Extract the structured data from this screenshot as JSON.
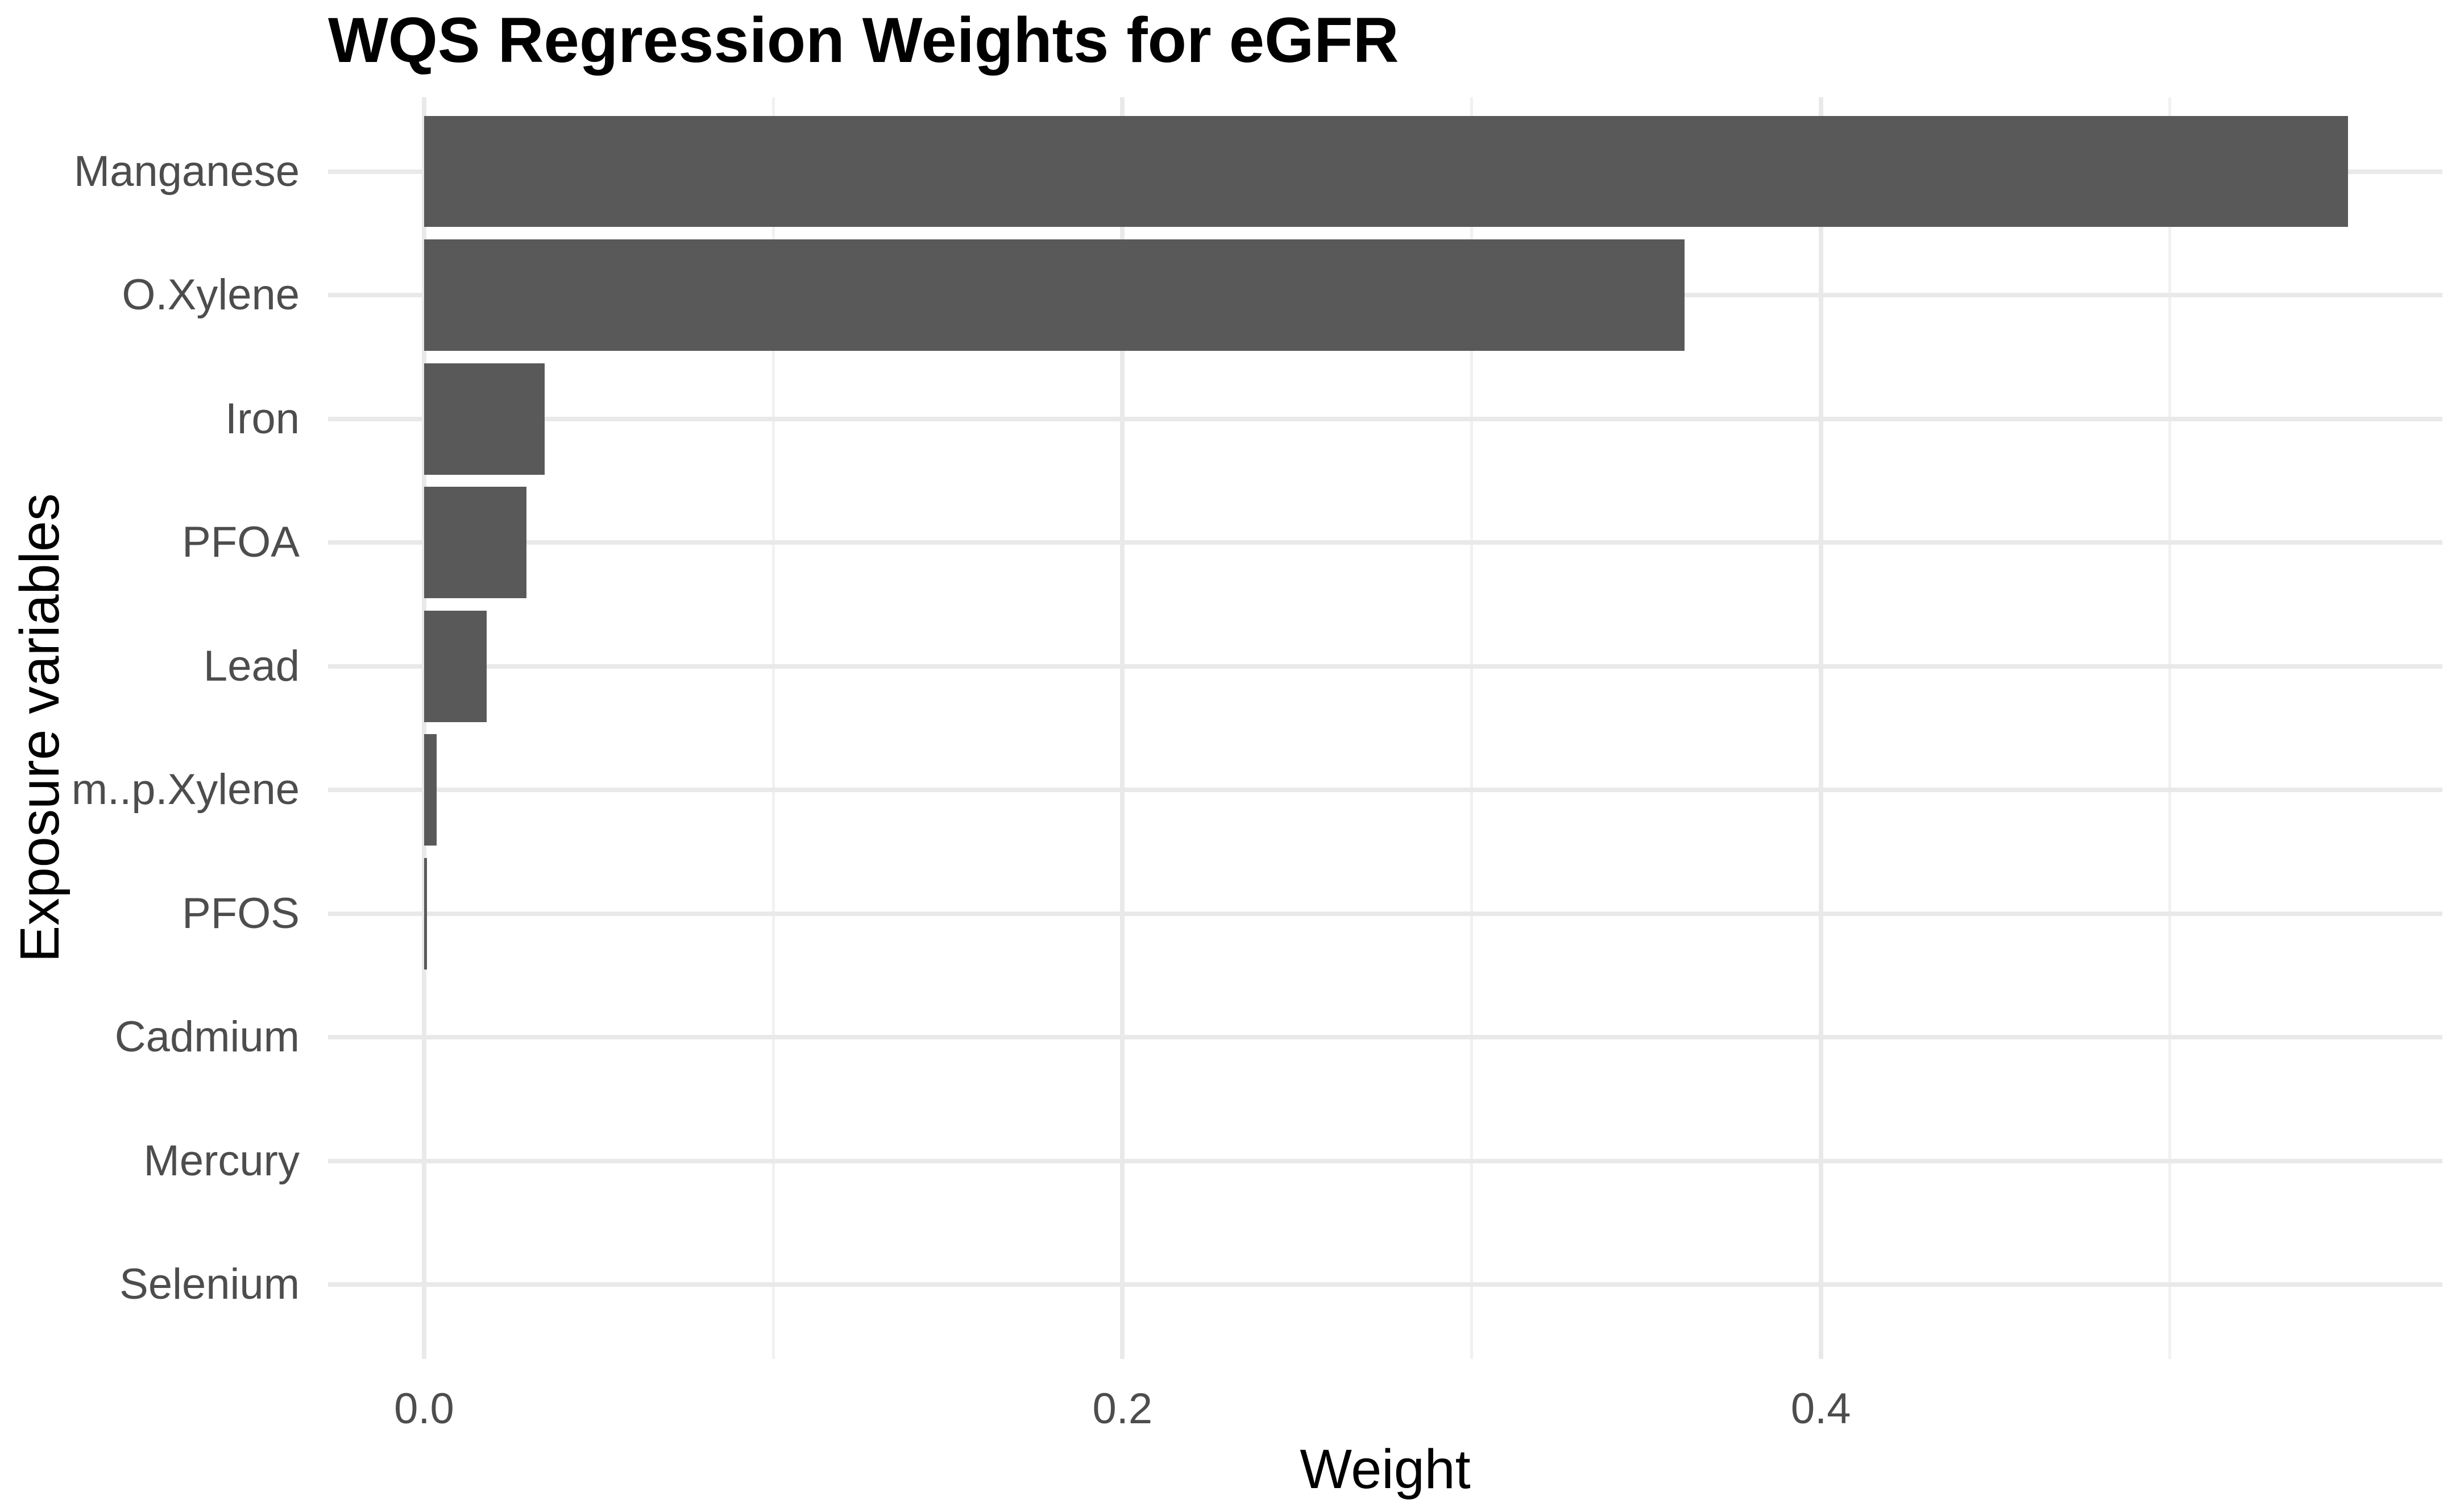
{
  "chart_data": {
    "type": "bar",
    "orientation": "horizontal",
    "title": "WQS Regression Weights for eGFR",
    "xlabel": "Weight",
    "ylabel": "Exposure variables",
    "categories": [
      "Manganese",
      "O.Xylene",
      "Iron",
      "PFOA",
      "Lead",
      "m..p.Xylene",
      "PFOS",
      "Cadmium",
      "Mercury",
      "Selenium"
    ],
    "values": [
      0.551,
      0.361,
      0.0345,
      0.0293,
      0.018,
      0.0036,
      0.0008,
      0,
      0,
      0
    ],
    "x_ticks_major": [
      {
        "value": 0.0,
        "label": "0.0"
      },
      {
        "value": 0.2,
        "label": "0.2"
      },
      {
        "value": 0.4,
        "label": "0.4"
      }
    ],
    "x_ticks_minor": [
      0.1,
      0.3,
      0.5
    ],
    "xlim": [
      -0.0275,
      0.578
    ],
    "bar_fraction_of_slot": 0.9,
    "discrete_axis_expansion": 0.6,
    "grid": "major-and-minor",
    "legend_position": "none",
    "colors": {
      "bar": "#595959",
      "grid_major": "#E9E9E9",
      "grid_minor": "#F1F1F1",
      "tick_label": "#4D4D4D",
      "title": "#000000",
      "axis_title": "#000000",
      "background": "#FFFFFF"
    }
  }
}
